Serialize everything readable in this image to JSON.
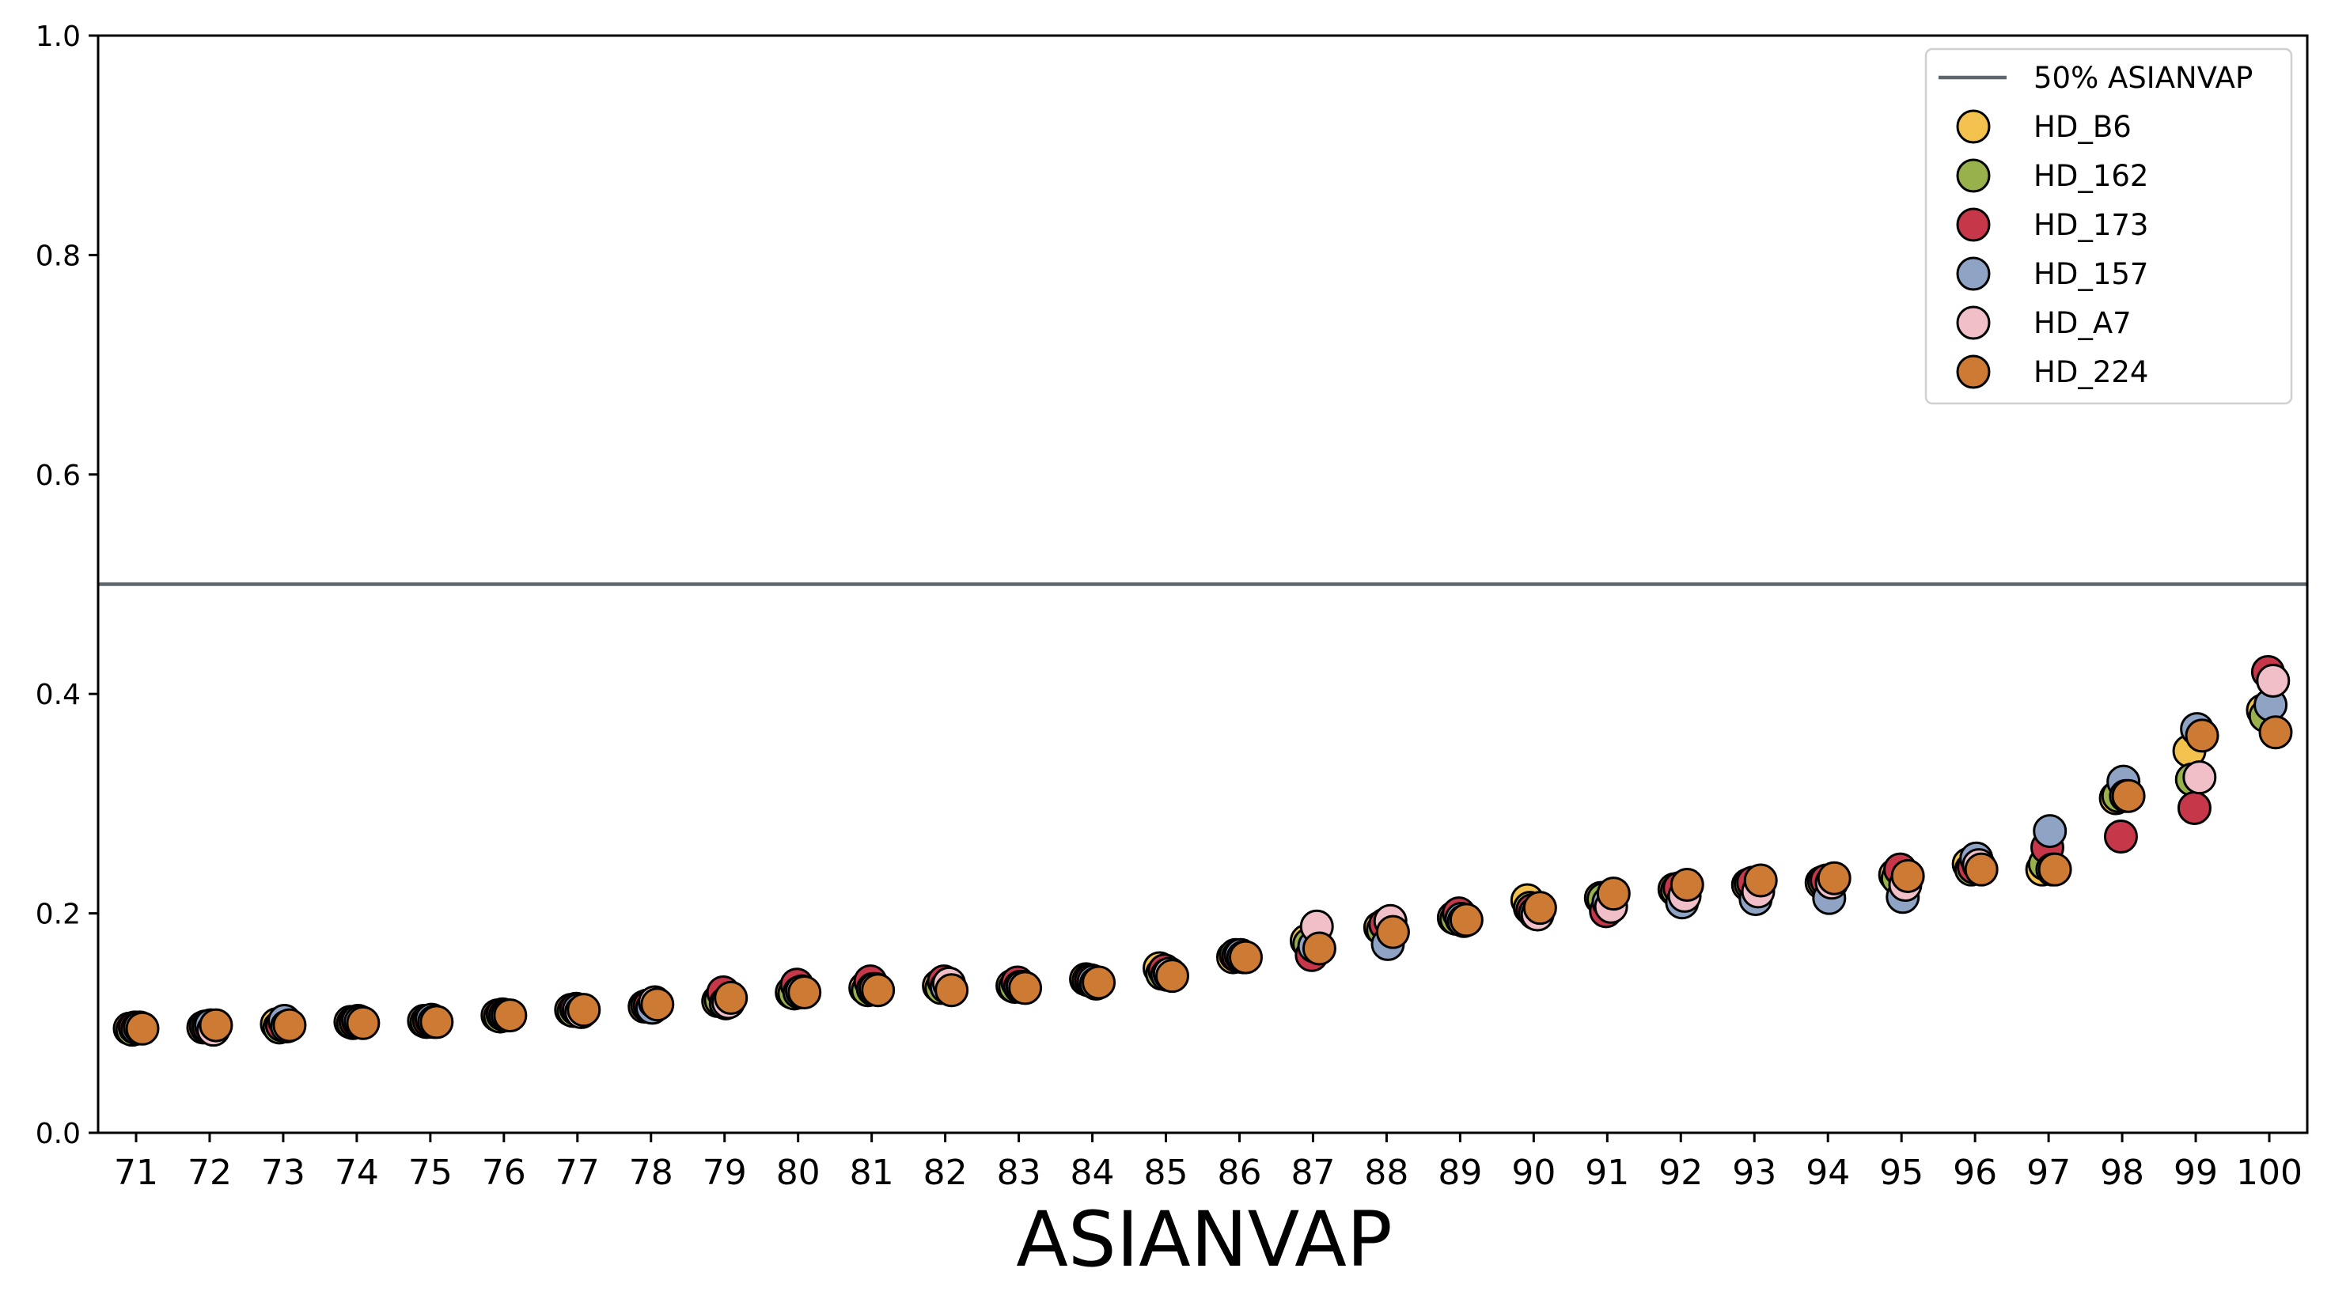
{
  "chart_data": {
    "type": "scatter",
    "title": "",
    "xlabel": "ASIANVAP",
    "ylabel": "",
    "ylim": [
      0,
      1
    ],
    "yticks": [
      "0.0",
      "0.2",
      "0.4",
      "0.6",
      "0.8",
      "1.0"
    ],
    "categories": [
      "71",
      "72",
      "73",
      "74",
      "75",
      "76",
      "77",
      "78",
      "79",
      "80",
      "81",
      "82",
      "83",
      "84",
      "85",
      "86",
      "87",
      "88",
      "89",
      "90",
      "91",
      "92",
      "93",
      "94",
      "95",
      "96",
      "97",
      "98",
      "99",
      "100"
    ],
    "reference_line": {
      "name": "50% ASIANVAP",
      "y": 0.5,
      "color": "#5f676e"
    },
    "grid": false,
    "legend_position": "top-right",
    "series": [
      {
        "name": "HD_B6",
        "color": "#f2c14e",
        "values": [
          0.095,
          0.096,
          0.099,
          0.101,
          0.102,
          0.107,
          0.112,
          0.115,
          0.12,
          0.128,
          0.132,
          0.134,
          0.134,
          0.14,
          0.15,
          0.16,
          0.175,
          0.187,
          0.196,
          0.212,
          0.214,
          0.222,
          0.226,
          0.228,
          0.235,
          0.245,
          0.24,
          0.305,
          0.348,
          0.385
        ]
      },
      {
        "name": "HD_162",
        "color": "#98b14c",
        "values": [
          0.094,
          0.097,
          0.096,
          0.1,
          0.101,
          0.106,
          0.111,
          0.116,
          0.121,
          0.127,
          0.13,
          0.132,
          0.133,
          0.139,
          0.145,
          0.162,
          0.172,
          0.185,
          0.195,
          0.205,
          0.213,
          0.221,
          0.227,
          0.229,
          0.232,
          0.24,
          0.245,
          0.307,
          0.322,
          0.38
        ]
      },
      {
        "name": "HD_173",
        "color": "#c7374a",
        "values": [
          0.096,
          0.097,
          0.098,
          0.101,
          0.102,
          0.108,
          0.113,
          0.116,
          0.128,
          0.135,
          0.138,
          0.138,
          0.137,
          0.139,
          0.148,
          0.161,
          0.162,
          0.19,
          0.2,
          0.203,
          0.202,
          0.223,
          0.228,
          0.23,
          0.24,
          0.242,
          0.26,
          0.27,
          0.296,
          0.42
        ]
      },
      {
        "name": "HD_157",
        "color": "#8fa3c4",
        "values": [
          0.095,
          0.098,
          0.102,
          0.102,
          0.103,
          0.107,
          0.112,
          0.114,
          0.118,
          0.128,
          0.131,
          0.133,
          0.133,
          0.138,
          0.144,
          0.162,
          0.17,
          0.172,
          0.195,
          0.2,
          0.21,
          0.21,
          0.213,
          0.214,
          0.215,
          0.25,
          0.275,
          0.32,
          0.368,
          0.39
        ]
      },
      {
        "name": "HD_A7",
        "color": "#f0bfc7",
        "values": [
          0.096,
          0.094,
          0.097,
          0.101,
          0.101,
          0.107,
          0.11,
          0.119,
          0.119,
          0.129,
          0.131,
          0.136,
          0.133,
          0.136,
          0.145,
          0.16,
          0.188,
          0.193,
          0.193,
          0.199,
          0.206,
          0.216,
          0.22,
          0.228,
          0.226,
          0.244,
          0.24,
          0.307,
          0.324,
          0.412
        ]
      },
      {
        "name": "HD_224",
        "color": "#cd7a35",
        "values": [
          0.095,
          0.098,
          0.098,
          0.1,
          0.101,
          0.107,
          0.112,
          0.117,
          0.123,
          0.128,
          0.13,
          0.13,
          0.132,
          0.137,
          0.143,
          0.16,
          0.168,
          0.183,
          0.194,
          0.205,
          0.218,
          0.226,
          0.23,
          0.232,
          0.234,
          0.24,
          0.24,
          0.307,
          0.362,
          0.365
        ]
      }
    ]
  }
}
